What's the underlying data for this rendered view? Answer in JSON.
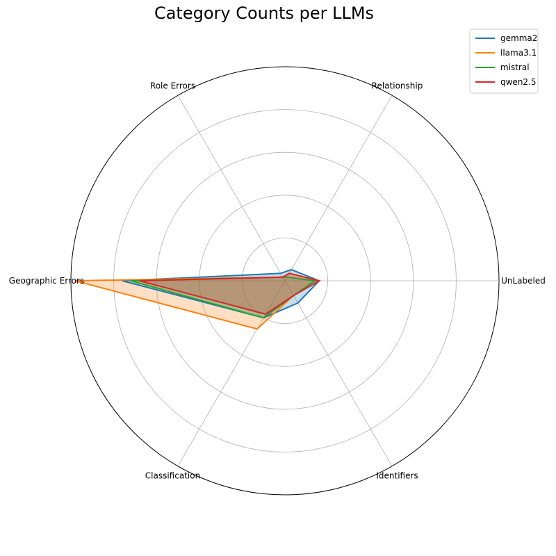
{
  "chart_data": {
    "type": "radar",
    "title": "Category Counts per LLMs",
    "categories": [
      "UnLabeled",
      "Relationship",
      "Role Errors",
      "Geographic Errors",
      "Classification",
      "Identifiers"
    ],
    "rmax": 50,
    "radial_ticks": [
      10,
      20,
      30,
      40,
      50
    ],
    "grid": true,
    "legend_position": "top-right",
    "series": [
      {
        "name": "gemma2",
        "color": "#1f77b4",
        "values": [
          8,
          3,
          2,
          38,
          10,
          6
        ]
      },
      {
        "name": "llama3.1",
        "color": "#ff7f0e",
        "values": [
          8,
          2,
          1,
          49,
          13,
          4
        ]
      },
      {
        "name": "mistral",
        "color": "#2ca02c",
        "values": [
          7,
          1,
          1,
          36,
          10,
          4
        ]
      },
      {
        "name": "qwen2.5",
        "color": "#d62728",
        "values": [
          8,
          2,
          1,
          34,
          9,
          4
        ]
      }
    ]
  }
}
